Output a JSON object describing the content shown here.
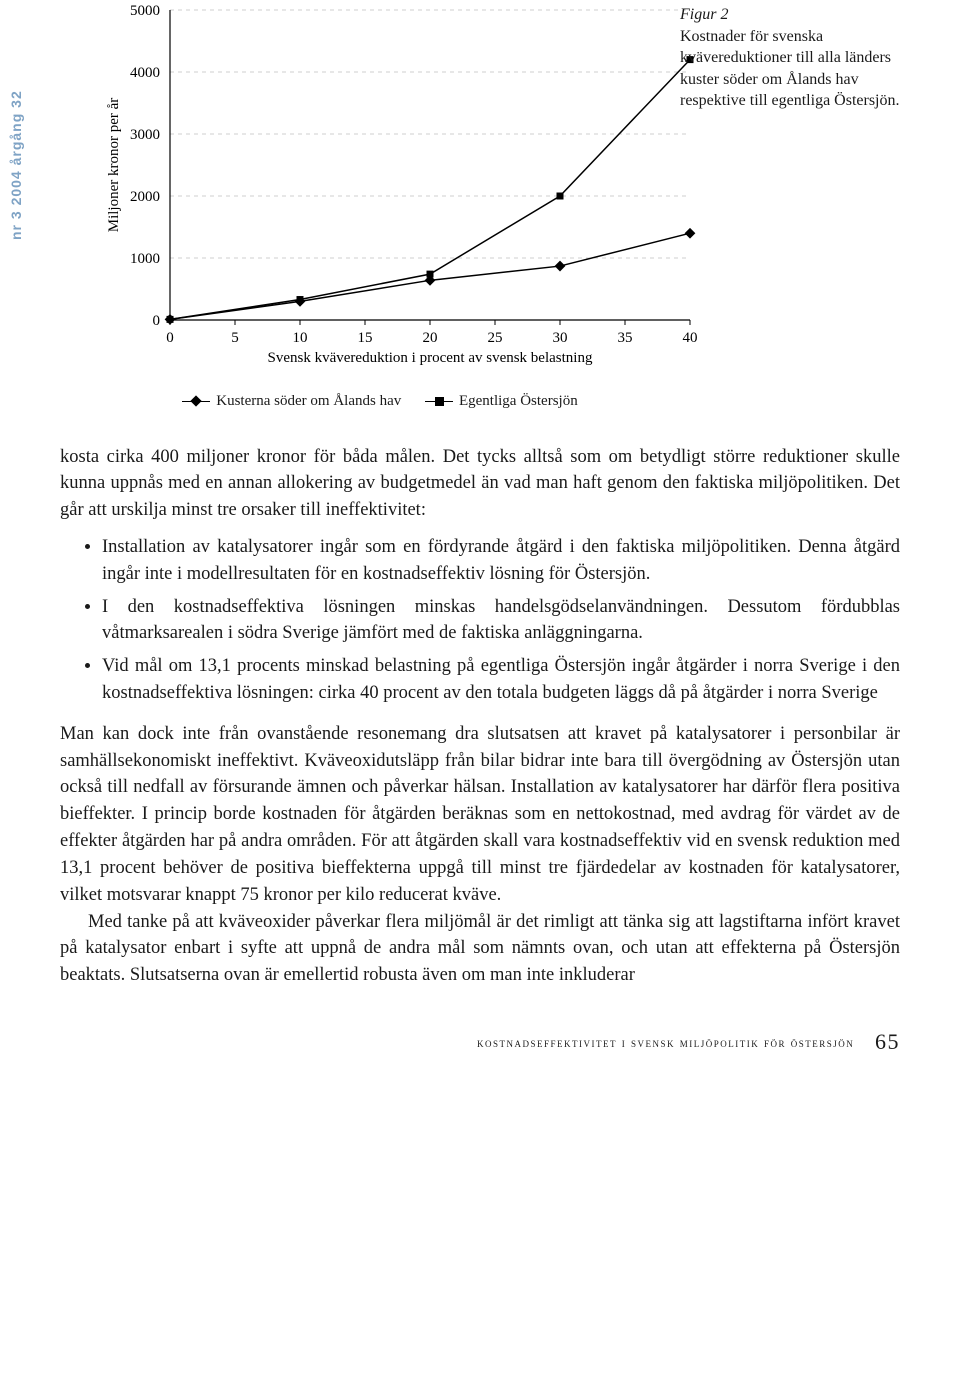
{
  "sidebar": "nr 3 2004 årgång 32",
  "figure": {
    "type": "line-scatter",
    "title_label": "Figur 2",
    "caption": "Kostnader för svenska kvävereduktioner till alla länders kuster söder om Ålands hav respektive till egentliga Östersjön.",
    "ylabel": "Miljoner kronor per år",
    "xlabel": "Svensk kvävereduktion i procent av svensk belastning",
    "xlim": [
      0,
      40
    ],
    "ylim": [
      0,
      5000
    ],
    "xticks": [
      0,
      5,
      10,
      15,
      20,
      25,
      30,
      35,
      40
    ],
    "yticks": [
      0,
      1000,
      2000,
      3000,
      4000,
      5000
    ],
    "grid_color": "#cfcfcf",
    "axis_color": "#000000",
    "background_color": "#ffffff",
    "line_width": 1.5,
    "marker_size": 7,
    "label_fontsize": 15,
    "tick_fontsize": 15,
    "series": [
      {
        "name": "Kusterna söder om Ålands hav",
        "marker": "diamond",
        "color": "#000000",
        "x": [
          0,
          10,
          20,
          30,
          40
        ],
        "y": [
          10,
          300,
          640,
          870,
          1400
        ]
      },
      {
        "name": "Egentliga Östersjön",
        "marker": "square",
        "color": "#000000",
        "x": [
          0,
          10,
          20,
          30,
          40
        ],
        "y": [
          10,
          330,
          740,
          2000,
          4200
        ]
      }
    ],
    "legend": {
      "item1": "Kusterna söder om Ålands hav",
      "item2": "Egentliga Östersjön"
    }
  },
  "body": {
    "p1": "kosta cirka 400 miljoner kronor för båda målen. Det tycks alltså som om betydligt större reduktioner skulle kunna uppnås med en annan allokering av budgetmedel än vad man haft genom den faktiska miljöpolitiken. Det går att urskilja minst tre orsaker till ineffektivitet:",
    "b1": "Installation av katalysatorer ingår som en fördyrande åtgärd i den faktiska miljöpolitiken. Denna åtgärd ingår inte i modellresultaten för en kostnadseffektiv lösning för Östersjön.",
    "b2": "I den kostnadseffektiva lösningen minskas handelsgödselanvändningen. Dessutom fördubblas våtmarksarealen i södra Sverige jämfört med de faktiska anläggningarna.",
    "b3": "Vid mål om 13,1 procents minskad belastning på egentliga Östersjön ingår åtgärder i norra Sverige i den kostnadseffektiva lösningen: cirka 40 procent av den totala budgeten läggs då på åtgärder i norra Sverige",
    "p2": "Man kan dock inte från ovanstående resonemang dra slutsatsen att kravet på katalysatorer i personbilar är samhällsekonomiskt ineffektivt. Kväveoxidutsläpp från bilar bidrar inte bara till övergödning av Östersjön utan också till nedfall av försurande ämnen och påverkar hälsan. Installation av katalysatorer har därför flera positiva bieffekter. I princip borde kostnaden för åtgärden beräknas som en nettokostnad, med avdrag för värdet av de effekter åtgärden har på andra områden. För att åtgärden skall vara kostnadseffektiv vid en svensk reduktion med 13,1 procent behöver de positiva bieffekterna uppgå till minst tre fjärdedelar av kostnaden för katalysatorer, vilket motsvarar knappt 75 kronor per kilo reducerat kväve.",
    "p3": "Med tanke på att kväveoxider påverkar flera miljömål är det rimligt att tänka sig att lagstiftarna infört kravet på katalysator enbart i syfte att uppnå de andra mål som nämnts ovan, och utan att effekterna på Östersjön beaktats. Slutsatserna ovan är emellertid robusta även om man inte inkluderar"
  },
  "footer": {
    "title": "kostnadseffektivitet i svensk miljöpolitik för östersjön",
    "page": "65"
  }
}
